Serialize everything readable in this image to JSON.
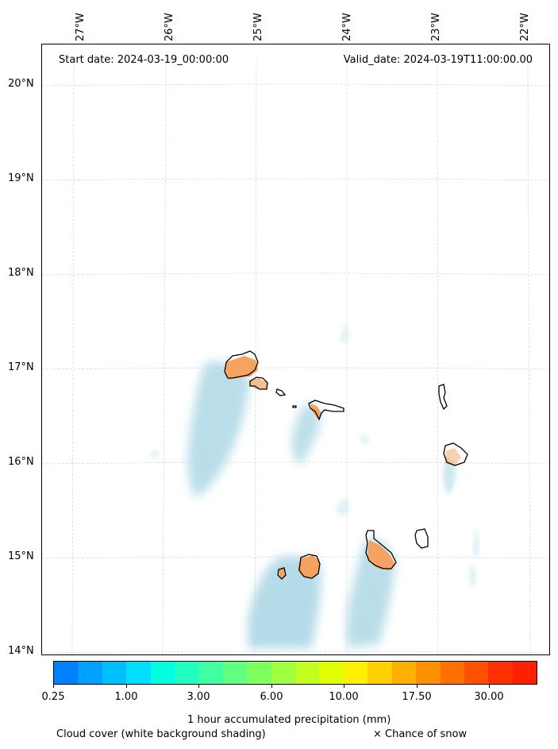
{
  "header": {
    "start_date": "Start date: 2024-03-19_00:00:00",
    "valid_date": "Valid_date: 2024-03-19T11:00:00.00"
  },
  "longitude_labels": [
    "27°W",
    "26°W",
    "25°W",
    "24°W",
    "23°W",
    "22°W"
  ],
  "latitude_labels": [
    "20°N",
    "19°N",
    "18°N",
    "17°N",
    "16°N",
    "15°N",
    "14°N"
  ],
  "colorbar": {
    "colors": [
      "#0080ff",
      "#00a0ff",
      "#00bfff",
      "#00dfff",
      "#00ffdf",
      "#20ffc0",
      "#40ffa0",
      "#60ff80",
      "#80ff60",
      "#a0ff40",
      "#c0ff20",
      "#e0ff00",
      "#fff000",
      "#ffd000",
      "#ffb000",
      "#ff9000",
      "#ff7000",
      "#ff5000",
      "#ff3000",
      "#ff2000"
    ],
    "tick_labels": [
      "0.25",
      "1.00",
      "3.00",
      "6.00",
      "10.00",
      "17.50",
      "30.00"
    ],
    "title": "1 hour accumulated precipitation (mm)"
  },
  "footer": {
    "cloud_cover": "Cloud cover (white background shading)",
    "snow": "× Chance of snow"
  },
  "map_colors": {
    "cloud_shading": "#add8e6",
    "precip_island": "#f4a460",
    "coastline": "#000000",
    "gridline": "#cccccc"
  }
}
